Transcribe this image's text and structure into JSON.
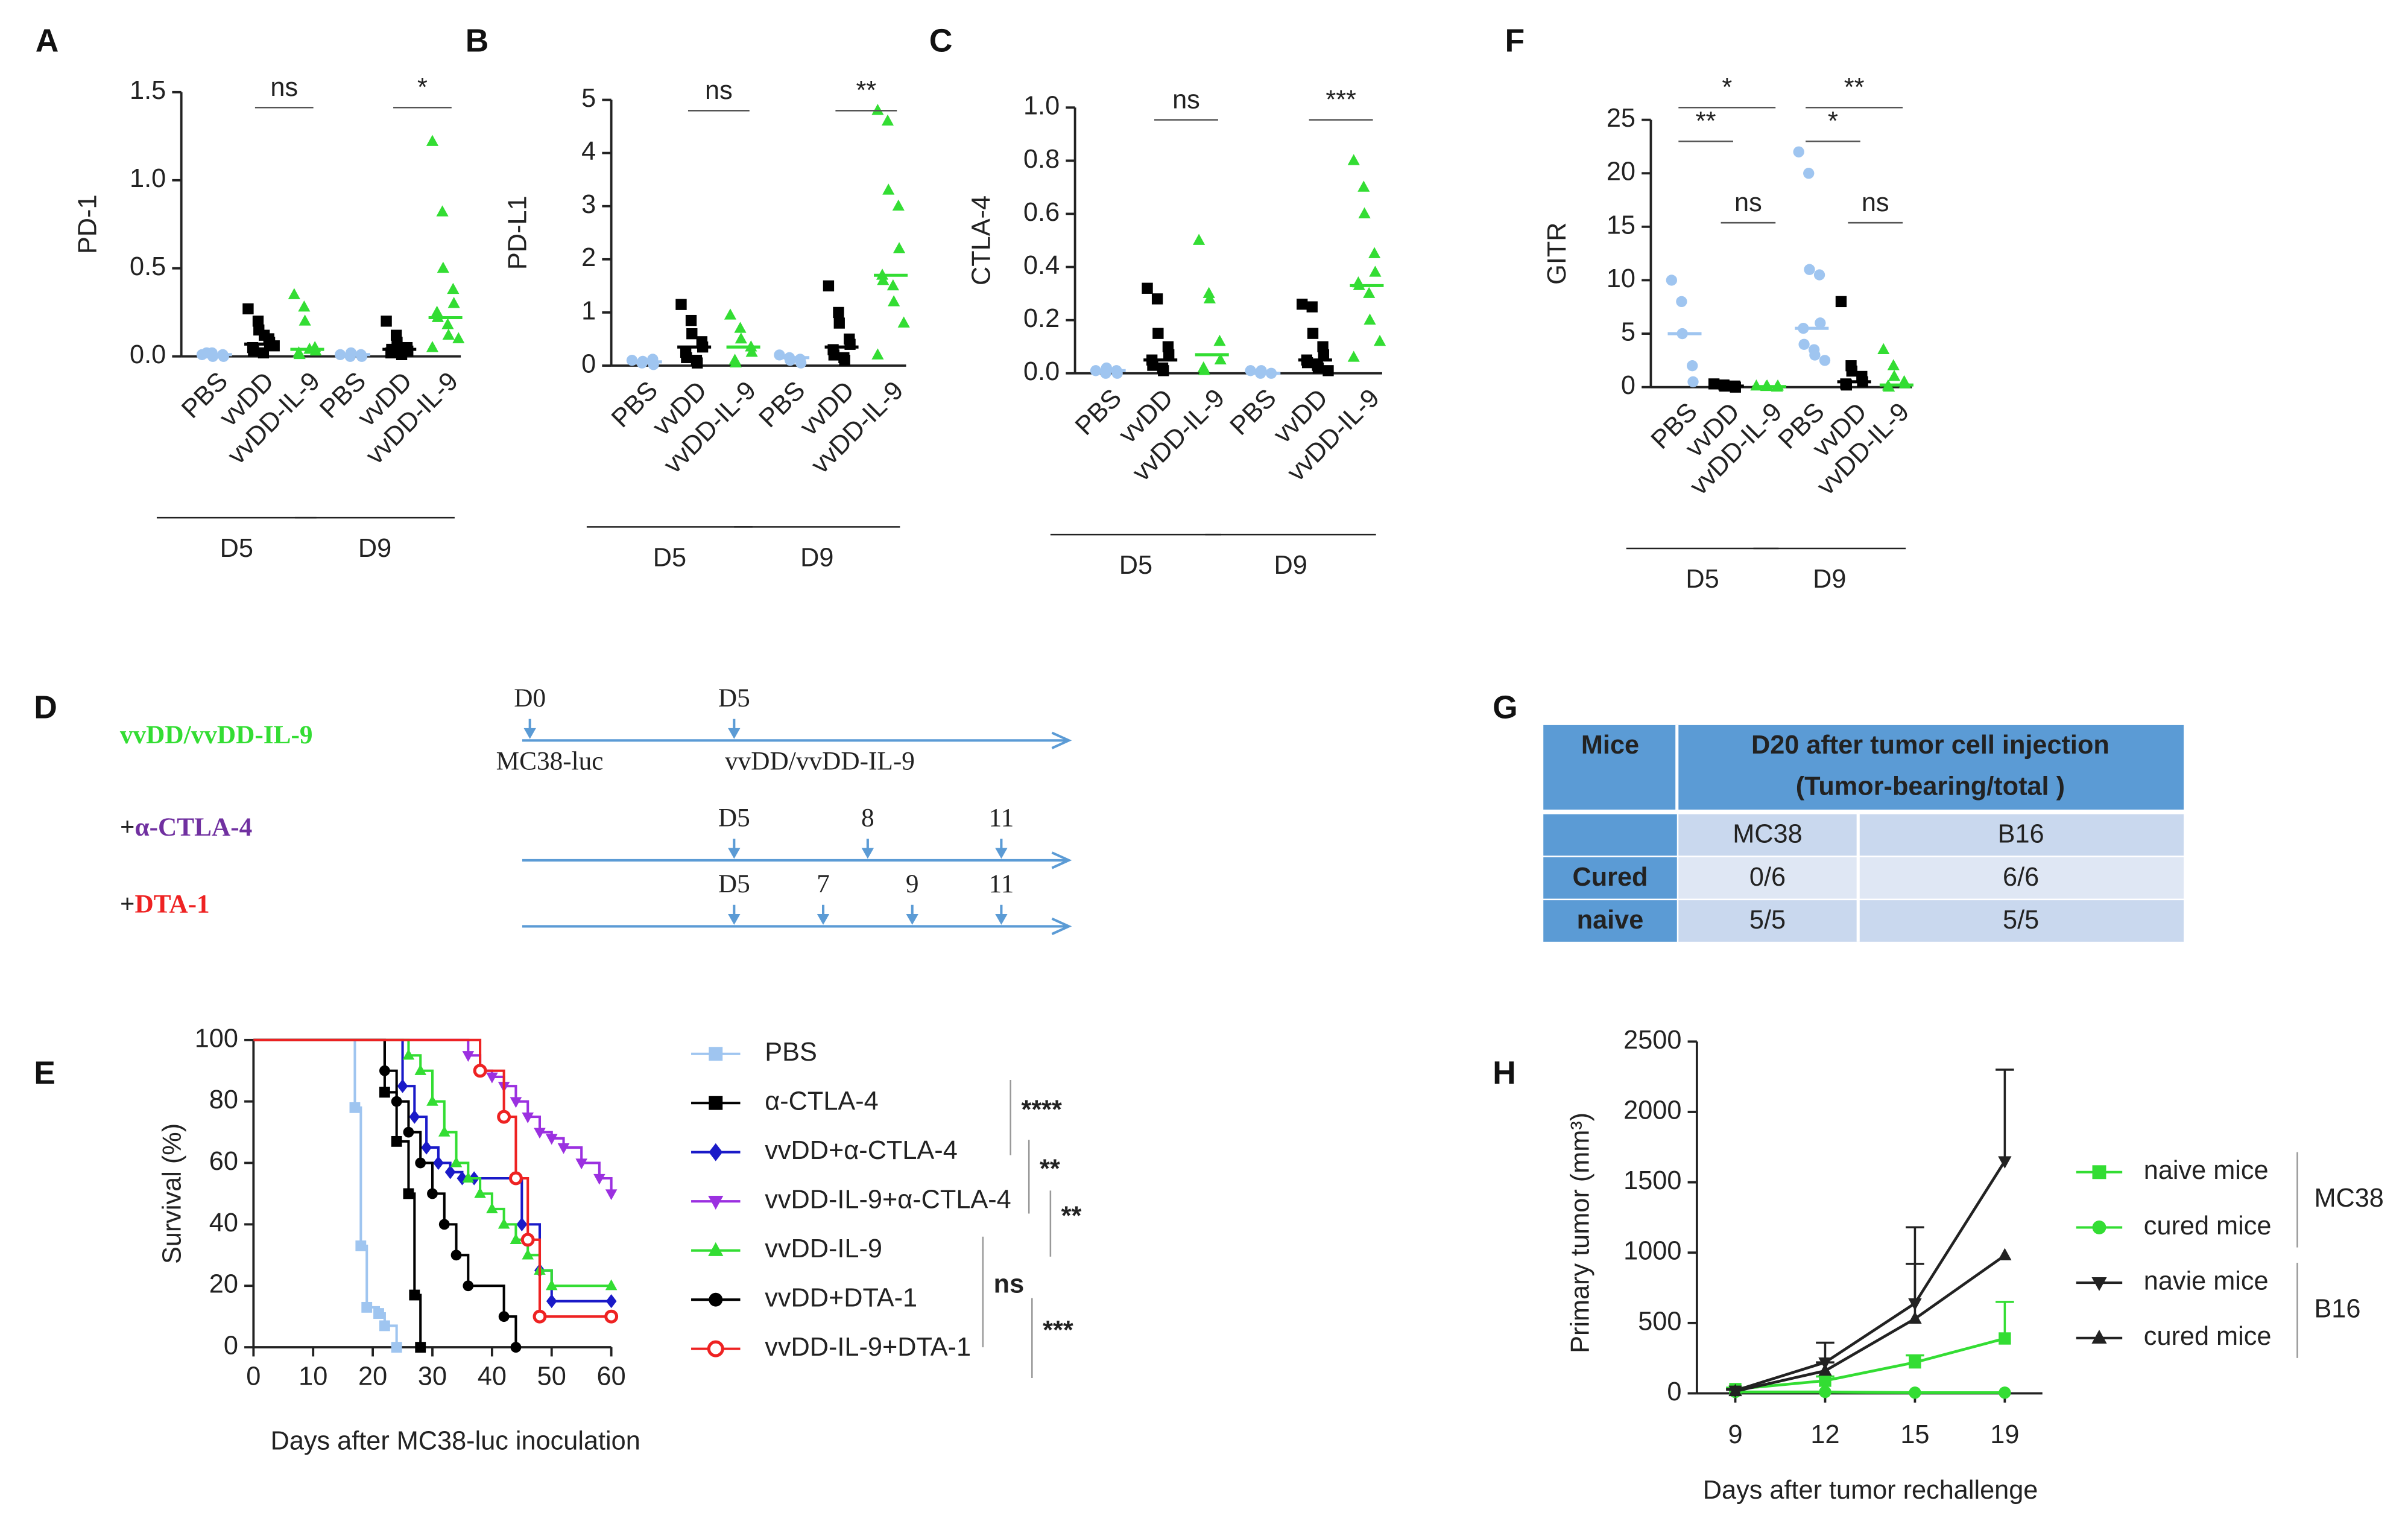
{
  "chart_data": [
    {
      "type": "dot",
      "panel": "A",
      "ylabel": "PD-1",
      "ylim": [
        0,
        1.5
      ],
      "yticks": [
        {
          "value": 0,
          "label": "0.0"
        },
        0.5,
        {
          "value": 1,
          "label": "1.0"
        },
        1.5
      ],
      "categories": [
        "PBS",
        "vvDD",
        "vvDD-IL-9",
        "PBS",
        "vvDD",
        "vvDD-IL-9"
      ],
      "colors": [
        "#9fc5f0",
        "#000000",
        "#33dd33",
        "#9fc5f0",
        "#000000",
        "#33dd33"
      ],
      "markers": [
        "circle",
        "square",
        "triangle",
        "circle",
        "square",
        "triangle"
      ],
      "points": [
        [
          0.01,
          0.02,
          0,
          0.01,
          0,
          0.02
        ],
        [
          0.27,
          0.2,
          0.15,
          0.1,
          0.08,
          0.05,
          0.03,
          0.02,
          0.12,
          0.06
        ],
        [
          0.35,
          0.28,
          0.2,
          0.05,
          0.03,
          0.02,
          0.01,
          0.04
        ],
        [
          0.01,
          0,
          0.02,
          0.01,
          0
        ],
        [
          0.2,
          0.12,
          0.08,
          0.05,
          0.03,
          0.02,
          0.04,
          0.01
        ],
        [
          1.22,
          0.82,
          0.5,
          0.38,
          0.3,
          0.25,
          0.22,
          0.18,
          0.12,
          0.1,
          0.05
        ]
      ],
      "medians": [
        0.01,
        0.07,
        0.04,
        0.01,
        0.04,
        0.22
      ],
      "group_labels": [
        "D5",
        "D9"
      ],
      "brackets": [
        {
          "text": "ns",
          "between": [
            1,
            2
          ]
        },
        {
          "text": "*",
          "between": [
            4,
            5
          ]
        }
      ]
    },
    {
      "type": "dot",
      "panel": "B",
      "ylabel": "PD-L1",
      "ylim": [
        0,
        5
      ],
      "yticks": [
        0,
        1,
        2,
        3,
        4,
        5
      ],
      "categories": [
        "PBS",
        "vvDD",
        "vvDD-IL-9",
        "PBS",
        "vvDD",
        "vvDD-IL-9"
      ],
      "colors": [
        "#9fc5f0",
        "#000000",
        "#33dd33",
        "#9fc5f0",
        "#000000",
        "#33dd33"
      ],
      "markers": [
        "circle",
        "square",
        "triangle",
        "circle",
        "square",
        "triangle"
      ],
      "points": [
        [
          0.1,
          0.05,
          0.08,
          0.12,
          0.02
        ],
        [
          1.15,
          0.85,
          0.6,
          0.45,
          0.35,
          0.25,
          0.15,
          0.1,
          0.05
        ],
        [
          0.95,
          0.7,
          0.5,
          0.35,
          0.25,
          0.1,
          0.05
        ],
        [
          0.2,
          0.15,
          0.1,
          0.12,
          0.05
        ],
        [
          1.5,
          1,
          0.8,
          0.5,
          0.4,
          0.3,
          0.2,
          0.15,
          0.1
        ],
        [
          4.8,
          4.6,
          3.3,
          3,
          2.2,
          1.7,
          1.6,
          1.5,
          1.2,
          0.8,
          0.2
        ]
      ],
      "medians": [
        0.07,
        0.35,
        0.35,
        0.15,
        0.35,
        1.7
      ],
      "group_labels": [
        "D5",
        "D9"
      ],
      "brackets": [
        {
          "text": "ns",
          "between": [
            1,
            2
          ]
        },
        {
          "text": "**",
          "between": [
            4,
            5
          ]
        }
      ]
    },
    {
      "type": "dot",
      "panel": "C",
      "ylabel": "CTLA-4",
      "ylim": [
        0,
        1
      ],
      "yticks": [
        {
          "value": 0,
          "label": "0.0"
        },
        0.2,
        0.4,
        0.6,
        0.8,
        {
          "value": 1,
          "label": "1.0"
        }
      ],
      "categories": [
        "PBS",
        "vvDD",
        "vvDD-IL-9",
        "PBS",
        "vvDD",
        "vvDD-IL-9"
      ],
      "colors": [
        "#9fc5f0",
        "#000000",
        "#33dd33",
        "#9fc5f0",
        "#000000",
        "#33dd33"
      ],
      "markers": [
        "circle",
        "square",
        "triangle",
        "circle",
        "square",
        "triangle"
      ],
      "points": [
        [
          0.01,
          0,
          0.02,
          0.01,
          0
        ],
        [
          0.32,
          0.28,
          0.15,
          0.1,
          0.07,
          0.05,
          0.03,
          0.02,
          0.01
        ],
        [
          0.5,
          0.3,
          0.28,
          0.12,
          0.05,
          0.02,
          0.01
        ],
        [
          0.01,
          0,
          0.01,
          0
        ],
        [
          0.26,
          0.25,
          0.15,
          0.1,
          0.07,
          0.05,
          0.04,
          0.03,
          0.02,
          0.01
        ],
        [
          0.8,
          0.7,
          0.6,
          0.45,
          0.38,
          0.34,
          0.33,
          0.3,
          0.2,
          0.12,
          0.06
        ]
      ],
      "medians": [
        0.01,
        0.05,
        0.07,
        0,
        0.05,
        0.33
      ],
      "group_labels": [
        "D5",
        "D9"
      ],
      "brackets": [
        {
          "text": "ns",
          "between": [
            1,
            2
          ]
        },
        {
          "text": "***",
          "between": [
            4,
            5
          ]
        }
      ]
    },
    {
      "type": "dot",
      "panel": "F",
      "ylabel": "GITR",
      "ylim": [
        0,
        25
      ],
      "yticks": [
        0,
        5,
        10,
        15,
        20,
        25
      ],
      "categories": [
        "PBS",
        "vvDD",
        "vvDD-IL-9",
        "PBS",
        "vvDD",
        "vvDD-IL-9"
      ],
      "colors": [
        "#9fc5f0",
        "#000000",
        "#33dd33",
        "#9fc5f0",
        "#000000",
        "#33dd33"
      ],
      "markers": [
        "circle",
        "square",
        "triangle",
        "circle",
        "square",
        "triangle"
      ],
      "points": [
        [
          10,
          8,
          5,
          2,
          0.5
        ],
        [
          0.3,
          0.2,
          0.1,
          0.1,
          0
        ],
        [
          0.1,
          0.05,
          0.1,
          0,
          0.1
        ],
        [
          22,
          20,
          11,
          10.5,
          6,
          5.5,
          4,
          3.5,
          3,
          2.5
        ],
        [
          8,
          2,
          1.5,
          1,
          0.5,
          0.3,
          0.2
        ],
        [
          3.5,
          2,
          1,
          0.5,
          0.3,
          0.1,
          0
        ]
      ],
      "medians": [
        5,
        0.1,
        0.05,
        5.5,
        0.5,
        0.2
      ],
      "group_labels": [
        "D5",
        "D9"
      ],
      "brackets": [
        {
          "text": "**",
          "between": [
            0,
            1
          ]
        },
        {
          "text": "*",
          "between": [
            0,
            2
          ]
        },
        {
          "text": "ns",
          "between": [
            1,
            2
          ]
        },
        {
          "text": "*",
          "between": [
            3,
            4
          ]
        },
        {
          "text": "**",
          "between": [
            3,
            5
          ]
        },
        {
          "text": "ns",
          "between": [
            4,
            5
          ]
        }
      ]
    },
    {
      "type": "survival",
      "panel": "E",
      "xlabel": "Days after MC38-luc inoculation",
      "ylabel": "Survival (%)",
      "xlim": [
        0,
        60
      ],
      "xticks": [
        0,
        10,
        20,
        30,
        40,
        50,
        60
      ],
      "ylim": [
        0,
        100
      ],
      "yticks": [
        0,
        20,
        40,
        60,
        80,
        100
      ],
      "series": [
        {
          "name": "PBS",
          "color": "#9fc5f0",
          "marker": "square",
          "x": [
            0,
            17,
            18,
            19,
            21,
            22,
            24
          ],
          "values": [
            100,
            78,
            33,
            13,
            11,
            7,
            0
          ]
        },
        {
          "name": "α-CTLA-4",
          "color": "#000000",
          "marker": "square",
          "x": [
            0,
            22,
            24,
            26,
            27,
            28
          ],
          "values": [
            100,
            83,
            67,
            50,
            17,
            0
          ]
        },
        {
          "name": "vvDD+α-CTLA-4",
          "color": "#1a1ac8",
          "marker": "diamond",
          "x": [
            0,
            25,
            27,
            29,
            31,
            33,
            35,
            37,
            45,
            48,
            50,
            60
          ],
          "values": [
            100,
            85,
            75,
            65,
            60,
            57,
            55,
            55,
            40,
            25,
            15,
            15
          ]
        },
        {
          "name": "vvDD-IL-9+α-CTLA-4",
          "color": "#9b30e0",
          "marker": "tridown",
          "x": [
            0,
            36,
            38,
            40,
            42,
            44,
            46,
            48,
            50,
            52,
            55,
            58,
            60
          ],
          "values": [
            100,
            95,
            90,
            88,
            85,
            80,
            75,
            70,
            68,
            65,
            60,
            55,
            50
          ]
        },
        {
          "name": "vvDD-IL-9",
          "color": "#33dd33",
          "marker": "triangle",
          "x": [
            0,
            26,
            28,
            30,
            32,
            34,
            36,
            38,
            40,
            42,
            44,
            46,
            48,
            50,
            60
          ],
          "values": [
            100,
            95,
            90,
            80,
            70,
            60,
            55,
            50,
            45,
            40,
            35,
            30,
            25,
            20,
            20
          ]
        },
        {
          "name": "vvDD+DTA-1",
          "color": "#000000",
          "marker": "circle",
          "x": [
            0,
            22,
            24,
            26,
            28,
            30,
            32,
            34,
            36,
            42,
            44
          ],
          "values": [
            100,
            90,
            80,
            70,
            60,
            50,
            40,
            30,
            20,
            10,
            0
          ]
        },
        {
          "name": "vvDD-IL-9+DTA-1",
          "color": "#ee2222",
          "marker": "ocircle",
          "x": [
            0,
            38,
            42,
            44,
            46,
            48,
            60
          ],
          "values": [
            100,
            90,
            75,
            55,
            35,
            10,
            10
          ]
        }
      ],
      "annotations": [
        "****",
        "**",
        "**",
        "ns",
        "***"
      ]
    },
    {
      "type": "line",
      "panel": "H",
      "xlabel": "Days after tumor rechallenge",
      "ylabel": "Primary tumor (mm³)",
      "categories": [
        "9",
        "12",
        "15",
        "19"
      ],
      "ylim": [
        0,
        2500
      ],
      "yticks": [
        0,
        500,
        1000,
        1500,
        2000,
        2500
      ],
      "series": [
        {
          "name": "naive mice",
          "color": "#33dd33",
          "marker": "square",
          "values": [
            30,
            90,
            220,
            390
          ],
          "errors": [
            10,
            30,
            50,
            260
          ]
        },
        {
          "name": "cured mice",
          "color": "#33dd33",
          "marker": "circle",
          "values": [
            10,
            10,
            5,
            5
          ]
        },
        {
          "name": "navie mice",
          "color": "#222222",
          "marker": "tridown",
          "values": [
            20,
            220,
            640,
            1650
          ],
          "errors": [
            10,
            140,
            540,
            650
          ]
        },
        {
          "name": "cured mice",
          "color": "#222222",
          "marker": "triangle",
          "values": [
            15,
            160,
            530,
            980
          ],
          "errors": [
            10,
            60,
            390,
            0
          ]
        }
      ],
      "legend_groups": [
        {
          "label": "MC38",
          "color": "#33dd33"
        },
        {
          "label": "B16",
          "color": "#222222"
        }
      ]
    }
  ],
  "timeline": {
    "panel": "D",
    "rows": [
      {
        "label": [
          {
            "text": "vvDD/vvDD-IL-9",
            "color": "#33dd33"
          }
        ],
        "events": [
          {
            "day": "D0",
            "color": "#222222",
            "note": "MC38-luc",
            "note_color": "#222222"
          },
          {
            "day": "D5",
            "color": "#33dd33",
            "note": "vvDD/vvDD-IL-9",
            "note_color": "#33dd33"
          }
        ]
      },
      {
        "label": [
          {
            "text": "+",
            "color": "#222222"
          },
          {
            "text": "α-CTLA-4",
            "color": "#7030a0"
          }
        ],
        "events": [
          {
            "day": "D5",
            "color": "#7030a0"
          },
          {
            "day": "8",
            "color": "#7030a0"
          },
          {
            "day": "11",
            "color": "#7030a0"
          }
        ]
      },
      {
        "label": [
          {
            "text": "+",
            "color": "#222222"
          },
          {
            "text": "DTA-1",
            "color": "#ee2222"
          }
        ],
        "events": [
          {
            "day": "D5",
            "color": "#ee2222"
          },
          {
            "day": "7",
            "color": "#ee2222"
          },
          {
            "day": "9",
            "color": "#ee2222"
          },
          {
            "day": "11",
            "color": "#ee2222"
          }
        ]
      }
    ]
  },
  "table": {
    "panel": "G",
    "header": [
      "Mice",
      [
        "D20 after tumor cell injection",
        "(Tumor-bearing/total )"
      ]
    ],
    "subheader": [
      "MC38",
      "B16"
    ],
    "rows": [
      [
        "Cured",
        "0/6",
        "6/6"
      ],
      [
        "naive",
        "5/5",
        "5/5"
      ]
    ]
  }
}
